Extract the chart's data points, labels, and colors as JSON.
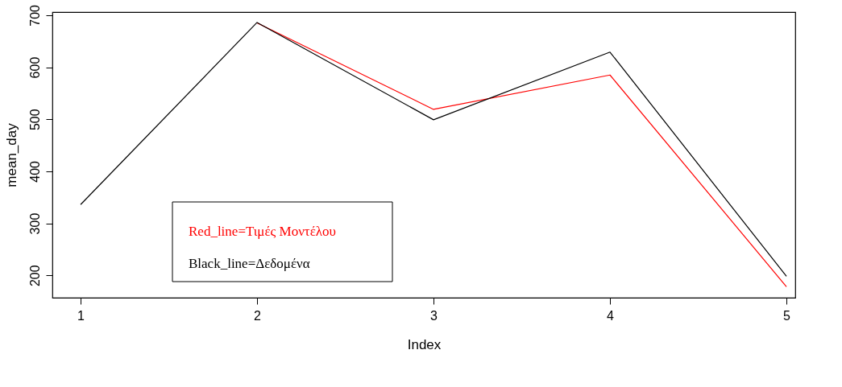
{
  "chart_data": {
    "type": "line",
    "xlabel": "Index",
    "ylabel": "mean_day",
    "x": [
      1,
      2,
      3,
      4,
      5
    ],
    "series": [
      {
        "name": "Red_line=Τιμές Μοντέλου",
        "color": "#ff0000",
        "values": [
          null,
          685,
          519,
          585,
          178
        ]
      },
      {
        "name": "Black_line=Δεδομένα",
        "color": "#000000",
        "values": [
          336,
          686,
          499,
          629,
          198
        ]
      }
    ],
    "xlim": [
      0.84,
      5.05
    ],
    "xticks": [
      1,
      2,
      3,
      4,
      5
    ],
    "ylim": [
      157,
      706
    ],
    "yticks": [
      200,
      300,
      400,
      500,
      600,
      700
    ],
    "grid": false,
    "legend": "bottom left",
    "marker": "none",
    "line_style": "solid"
  }
}
